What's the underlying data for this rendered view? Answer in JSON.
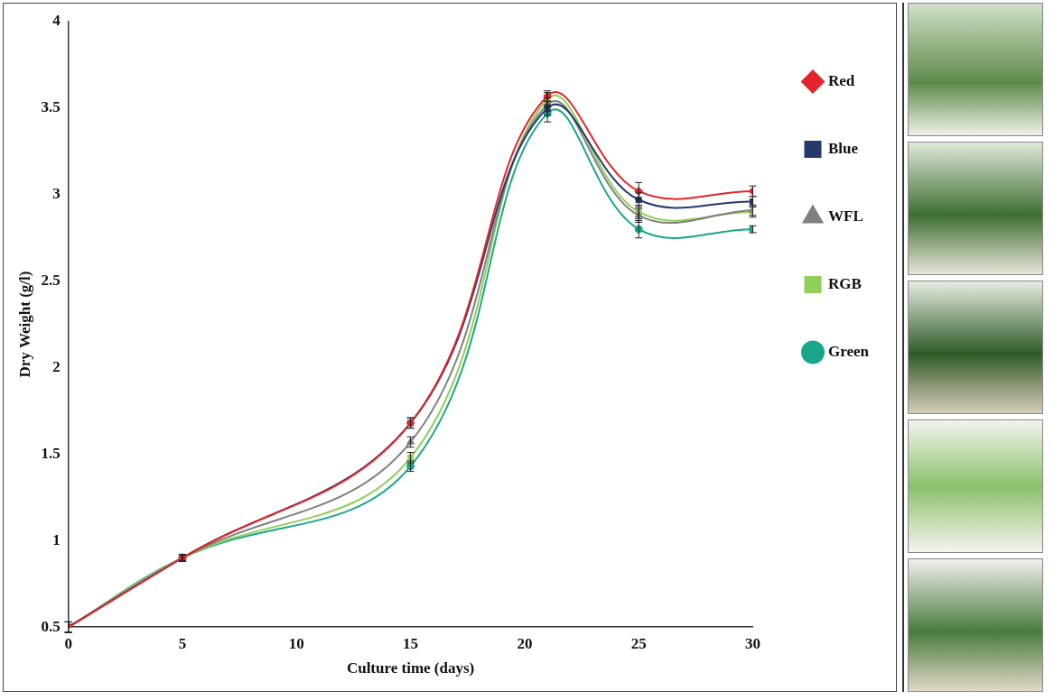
{
  "chart_data": {
    "type": "line",
    "x_label": "Culture time (days)",
    "y_label": "Dry Weight (g/l)",
    "x": [
      0,
      5,
      15,
      21,
      25,
      30
    ],
    "series": [
      {
        "name": "Red",
        "color": "#e3262b",
        "marker": "diamond",
        "values": [
          0.5,
          0.9,
          1.68,
          3.57,
          3.02,
          3.02
        ],
        "errors": [
          0.03,
          0.02,
          0.03,
          0.03,
          0.05,
          0.03
        ]
      },
      {
        "name": "Blue",
        "color": "#243a6b",
        "marker": "square",
        "values": [
          0.5,
          0.9,
          1.68,
          3.5,
          2.97,
          2.96
        ],
        "errors": [
          0.03,
          0.02,
          0.03,
          0.04,
          0.04,
          0.03
        ]
      },
      {
        "name": "WFL",
        "color": "#7f7f7f",
        "marker": "triangle",
        "values": [
          0.5,
          0.9,
          1.57,
          3.52,
          2.88,
          2.91
        ],
        "errors": [
          0.03,
          0.02,
          0.03,
          0.04,
          0.04,
          0.03
        ]
      },
      {
        "name": "RGB",
        "color": "#8fcf5a",
        "marker": "square",
        "values": [
          0.5,
          0.9,
          1.48,
          3.55,
          2.9,
          2.9
        ],
        "errors": [
          0.03,
          0.02,
          0.03,
          0.04,
          0.04,
          0.03
        ]
      },
      {
        "name": "Green",
        "color": "#1aa68a",
        "marker": "circle",
        "values": [
          0.5,
          0.9,
          1.43,
          3.47,
          2.8,
          2.8
        ],
        "errors": [
          0.03,
          0.02,
          0.03,
          0.05,
          0.05,
          0.02
        ]
      }
    ],
    "xlim": [
      0,
      30
    ],
    "xticks": [
      0,
      5,
      10,
      15,
      20,
      25,
      30
    ],
    "ylim": [
      0.5,
      4
    ],
    "yticks": [
      0.5,
      1,
      1.5,
      2,
      2.5,
      3,
      3.5,
      4
    ],
    "grid": false,
    "legend": "right"
  }
}
